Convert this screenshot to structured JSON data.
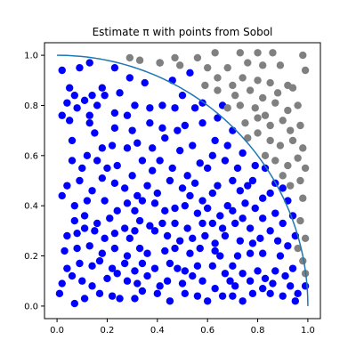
{
  "chart_data": {
    "type": "scatter",
    "title": "Estimate π with points from Sobol",
    "xlabel": "",
    "ylabel": "",
    "xlim": [
      -0.05,
      1.05
    ],
    "ylim": [
      -0.05,
      1.05
    ],
    "x_ticks": [
      "0.0",
      "0.2",
      "0.4",
      "0.6",
      "0.8",
      "1.0"
    ],
    "y_ticks": [
      "0.0",
      "0.2",
      "0.4",
      "0.6",
      "0.8",
      "1.0"
    ],
    "grid": false,
    "legend": "none",
    "colors": {
      "inside": "#0000ff",
      "outside": "#808080",
      "arc": "#1f77b4"
    },
    "arc": {
      "type": "quarter-circle",
      "radius": 1,
      "center": [
        0,
        0
      ]
    },
    "series": [
      {
        "color": "#0000ff",
        "points": [
          [
            0.02,
            0.94
          ],
          [
            0.07,
            0.84
          ],
          [
            0.13,
            0.97
          ],
          [
            0.18,
            0.87
          ],
          [
            0.23,
            0.95
          ],
          [
            0.29,
            0.91
          ],
          [
            0.35,
            0.89
          ],
          [
            0.41,
            0.97
          ],
          [
            0.46,
            0.9
          ],
          [
            0.53,
            0.93
          ],
          [
            0.09,
            0.95
          ],
          [
            0.05,
            0.87
          ],
          [
            0.14,
            0.84
          ],
          [
            0.11,
            0.82
          ],
          [
            0.19,
            0.84
          ],
          [
            0.25,
            0.85
          ],
          [
            0.04,
            0.81
          ],
          [
            0.16,
            0.8
          ],
          [
            0.02,
            0.76
          ],
          [
            0.08,
            0.79
          ],
          [
            0.13,
            0.76
          ],
          [
            0.23,
            0.77
          ],
          [
            0.28,
            0.76
          ],
          [
            0.31,
            0.8
          ],
          [
            0.37,
            0.79
          ],
          [
            0.42,
            0.8
          ],
          [
            0.47,
            0.79
          ],
          [
            0.5,
            0.84
          ],
          [
            0.55,
            0.79
          ],
          [
            0.58,
            0.81
          ],
          [
            0.66,
            0.8
          ],
          [
            0.64,
            0.75
          ],
          [
            0.7,
            0.7
          ],
          [
            0.05,
            0.74
          ],
          [
            0.13,
            0.73
          ],
          [
            0.23,
            0.71
          ],
          [
            0.3,
            0.7
          ],
          [
            0.37,
            0.73
          ],
          [
            0.42,
            0.71
          ],
          [
            0.48,
            0.7
          ],
          [
            0.51,
            0.72
          ],
          [
            0.58,
            0.73
          ],
          [
            0.63,
            0.66
          ],
          [
            0.68,
            0.64
          ],
          [
            0.74,
            0.61
          ],
          [
            0.79,
            0.56
          ],
          [
            0.83,
            0.55
          ],
          [
            0.06,
            0.66
          ],
          [
            0.15,
            0.69
          ],
          [
            0.18,
            0.63
          ],
          [
            0.22,
            0.64
          ],
          [
            0.28,
            0.63
          ],
          [
            0.32,
            0.65
          ],
          [
            0.38,
            0.63
          ],
          [
            0.43,
            0.67
          ],
          [
            0.49,
            0.62
          ],
          [
            0.54,
            0.64
          ],
          [
            0.57,
            0.57
          ],
          [
            0.62,
            0.6
          ],
          [
            0.67,
            0.58
          ],
          [
            0.72,
            0.55
          ],
          [
            0.78,
            0.5
          ],
          [
            0.87,
            0.49
          ],
          [
            0.9,
            0.47
          ],
          [
            0.06,
            0.58
          ],
          [
            0.1,
            0.55
          ],
          [
            0.12,
            0.6
          ],
          [
            0.16,
            0.58
          ],
          [
            0.2,
            0.55
          ],
          [
            0.24,
            0.56
          ],
          [
            0.3,
            0.52
          ],
          [
            0.34,
            0.58
          ],
          [
            0.38,
            0.54
          ],
          [
            0.41,
            0.58
          ],
          [
            0.46,
            0.55
          ],
          [
            0.52,
            0.52
          ],
          [
            0.55,
            0.49
          ],
          [
            0.6,
            0.55
          ],
          [
            0.64,
            0.48
          ],
          [
            0.7,
            0.5
          ],
          [
            0.73,
            0.46
          ],
          [
            0.76,
            0.48
          ],
          [
            0.82,
            0.43
          ],
          [
            0.85,
            0.45
          ],
          [
            0.92,
            0.42
          ],
          [
            0.04,
            0.48
          ],
          [
            0.09,
            0.5
          ],
          [
            0.14,
            0.46
          ],
          [
            0.18,
            0.51
          ],
          [
            0.23,
            0.49
          ],
          [
            0.27,
            0.47
          ],
          [
            0.32,
            0.44
          ],
          [
            0.36,
            0.48
          ],
          [
            0.4,
            0.45
          ],
          [
            0.45,
            0.5
          ],
          [
            0.5,
            0.47
          ],
          [
            0.53,
            0.44
          ],
          [
            0.58,
            0.42
          ],
          [
            0.62,
            0.45
          ],
          [
            0.68,
            0.4
          ],
          [
            0.75,
            0.41
          ],
          [
            0.79,
            0.39
          ],
          [
            0.87,
            0.37
          ],
          [
            0.02,
            0.44
          ],
          [
            0.07,
            0.4
          ],
          [
            0.12,
            0.42
          ],
          [
            0.19,
            0.42
          ],
          [
            0.24,
            0.38
          ],
          [
            0.28,
            0.41
          ],
          [
            0.31,
            0.38
          ],
          [
            0.34,
            0.42
          ],
          [
            0.39,
            0.41
          ],
          [
            0.43,
            0.38
          ],
          [
            0.47,
            0.39
          ],
          [
            0.51,
            0.4
          ],
          [
            0.56,
            0.37
          ],
          [
            0.6,
            0.39
          ],
          [
            0.65,
            0.36
          ],
          [
            0.7,
            0.38
          ],
          [
            0.74,
            0.35
          ],
          [
            0.82,
            0.35
          ],
          [
            0.9,
            0.33
          ],
          [
            0.94,
            0.36
          ],
          [
            0.07,
            0.34
          ],
          [
            0.11,
            0.36
          ],
          [
            0.16,
            0.33
          ],
          [
            0.21,
            0.35
          ],
          [
            0.27,
            0.31
          ],
          [
            0.33,
            0.34
          ],
          [
            0.37,
            0.32
          ],
          [
            0.42,
            0.33
          ],
          [
            0.47,
            0.33
          ],
          [
            0.52,
            0.31
          ],
          [
            0.58,
            0.33
          ],
          [
            0.62,
            0.33
          ],
          [
            0.66,
            0.31
          ],
          [
            0.71,
            0.33
          ],
          [
            0.77,
            0.31
          ],
          [
            0.85,
            0.3
          ],
          [
            0.95,
            0.28
          ],
          [
            0.04,
            0.28
          ],
          [
            0.08,
            0.29
          ],
          [
            0.11,
            0.31
          ],
          [
            0.15,
            0.3
          ],
          [
            0.19,
            0.27
          ],
          [
            0.23,
            0.29
          ],
          [
            0.29,
            0.27
          ],
          [
            0.31,
            0.3
          ],
          [
            0.39,
            0.3
          ],
          [
            0.44,
            0.28
          ],
          [
            0.49,
            0.26
          ],
          [
            0.54,
            0.27
          ],
          [
            0.59,
            0.28
          ],
          [
            0.63,
            0.25
          ],
          [
            0.67,
            0.28
          ],
          [
            0.73,
            0.26
          ],
          [
            0.78,
            0.25
          ],
          [
            0.81,
            0.27
          ],
          [
            0.88,
            0.26
          ],
          [
            0.92,
            0.24
          ],
          [
            0.03,
            0.22
          ],
          [
            0.08,
            0.23
          ],
          [
            0.13,
            0.24
          ],
          [
            0.18,
            0.21
          ],
          [
            0.23,
            0.23
          ],
          [
            0.28,
            0.2
          ],
          [
            0.33,
            0.23
          ],
          [
            0.36,
            0.21
          ],
          [
            0.43,
            0.22
          ],
          [
            0.47,
            0.23
          ],
          [
            0.53,
            0.21
          ],
          [
            0.57,
            0.23
          ],
          [
            0.63,
            0.22
          ],
          [
            0.65,
            0.2
          ],
          [
            0.72,
            0.2
          ],
          [
            0.77,
            0.21
          ],
          [
            0.82,
            0.21
          ],
          [
            0.89,
            0.2
          ],
          [
            0.04,
            0.15
          ],
          [
            0.09,
            0.17
          ],
          [
            0.14,
            0.16
          ],
          [
            0.17,
            0.18
          ],
          [
            0.22,
            0.15
          ],
          [
            0.27,
            0.17
          ],
          [
            0.31,
            0.14
          ],
          [
            0.34,
            0.17
          ],
          [
            0.39,
            0.15
          ],
          [
            0.45,
            0.17
          ],
          [
            0.48,
            0.15
          ],
          [
            0.51,
            0.14
          ],
          [
            0.56,
            0.16
          ],
          [
            0.62,
            0.16
          ],
          [
            0.67,
            0.13
          ],
          [
            0.7,
            0.16
          ],
          [
            0.74,
            0.13
          ],
          [
            0.8,
            0.14
          ],
          [
            0.83,
            0.11
          ],
          [
            0.87,
            0.14
          ],
          [
            0.91,
            0.12
          ],
          [
            0.94,
            0.15
          ],
          [
            0.02,
            0.09
          ],
          [
            0.06,
            0.12
          ],
          [
            0.1,
            0.1
          ],
          [
            0.14,
            0.08
          ],
          [
            0.2,
            0.11
          ],
          [
            0.24,
            0.13
          ],
          [
            0.28,
            0.1
          ],
          [
            0.32,
            0.09
          ],
          [
            0.36,
            0.12
          ],
          [
            0.41,
            0.08
          ],
          [
            0.44,
            0.1
          ],
          [
            0.5,
            0.09
          ],
          [
            0.54,
            0.12
          ],
          [
            0.58,
            0.1
          ],
          [
            0.63,
            0.07
          ],
          [
            0.69,
            0.1
          ],
          [
            0.71,
            0.08
          ],
          [
            0.77,
            0.1
          ],
          [
            0.82,
            0.07
          ],
          [
            0.86,
            0.09
          ],
          [
            0.93,
            0.08
          ],
          [
            0.99,
            0.08
          ],
          [
            0.01,
            0.05
          ],
          [
            0.07,
            0.01
          ],
          [
            0.11,
            0.03
          ],
          [
            0.17,
            0.05
          ],
          [
            0.22,
            0.04
          ],
          [
            0.25,
            0.03
          ],
          [
            0.31,
            0.03
          ],
          [
            0.34,
            0.06
          ],
          [
            0.4,
            0.05
          ],
          [
            0.45,
            0.02
          ],
          [
            0.51,
            0.05
          ],
          [
            0.56,
            0.04
          ],
          [
            0.6,
            0.02
          ],
          [
            0.66,
            0.04
          ],
          [
            0.7,
            0.04
          ],
          [
            0.74,
            0.02
          ],
          [
            0.78,
            0.05
          ],
          [
            0.85,
            0.05
          ],
          [
            0.9,
            0.04
          ],
          [
            0.95,
            0.02
          ],
          [
            0.96,
            0.05
          ]
        ]
      },
      {
        "color": "#808080",
        "points": [
          [
            0.29,
            0.99
          ],
          [
            0.33,
            0.98
          ],
          [
            0.47,
            0.99
          ],
          [
            0.56,
            0.99
          ],
          [
            0.63,
            1.01
          ],
          [
            0.73,
            1.01
          ],
          [
            0.8,
            1.01
          ],
          [
            0.86,
            1.01
          ],
          [
            0.98,
            1.0
          ],
          [
            0.41,
            0.97
          ],
          [
            0.49,
            0.96
          ],
          [
            0.6,
            0.95
          ],
          [
            0.68,
            0.95
          ],
          [
            0.76,
            0.97
          ],
          [
            0.82,
            0.96
          ],
          [
            0.89,
            0.96
          ],
          [
            0.99,
            0.94
          ],
          [
            0.59,
            0.88
          ],
          [
            0.64,
            0.91
          ],
          [
            0.7,
            0.88
          ],
          [
            0.74,
            0.91
          ],
          [
            0.8,
            0.9
          ],
          [
            0.85,
            0.89
          ],
          [
            0.92,
            0.88
          ],
          [
            0.64,
            0.86
          ],
          [
            0.71,
            0.84
          ],
          [
            0.77,
            0.86
          ],
          [
            0.82,
            0.83
          ],
          [
            0.88,
            0.85
          ],
          [
            0.94,
            0.87
          ],
          [
            0.68,
            0.79
          ],
          [
            0.73,
            0.8
          ],
          [
            0.79,
            0.79
          ],
          [
            0.83,
            0.76
          ],
          [
            0.87,
            0.81
          ],
          [
            0.92,
            0.78
          ],
          [
            0.96,
            0.8
          ],
          [
            0.75,
            0.73
          ],
          [
            0.8,
            0.75
          ],
          [
            0.85,
            0.72
          ],
          [
            0.9,
            0.74
          ],
          [
            0.93,
            0.7
          ],
          [
            0.97,
            0.72
          ],
          [
            0.76,
            0.67
          ],
          [
            0.8,
            0.69
          ],
          [
            0.85,
            0.66
          ],
          [
            0.89,
            0.64
          ],
          [
            0.94,
            0.66
          ],
          [
            0.98,
            0.63
          ],
          [
            0.83,
            0.6
          ],
          [
            0.87,
            0.58
          ],
          [
            0.92,
            0.56
          ],
          [
            0.96,
            0.59
          ],
          [
            0.99,
            0.55
          ],
          [
            0.9,
            0.52
          ],
          [
            0.97,
            0.5
          ],
          [
            0.93,
            0.48
          ],
          [
            0.98,
            0.43
          ],
          [
            0.97,
            0.34
          ],
          [
            0.99,
            0.27
          ],
          [
            0.96,
            0.23
          ],
          [
            0.98,
            0.18
          ],
          [
            0.99,
            0.13
          ]
        ]
      }
    ]
  }
}
